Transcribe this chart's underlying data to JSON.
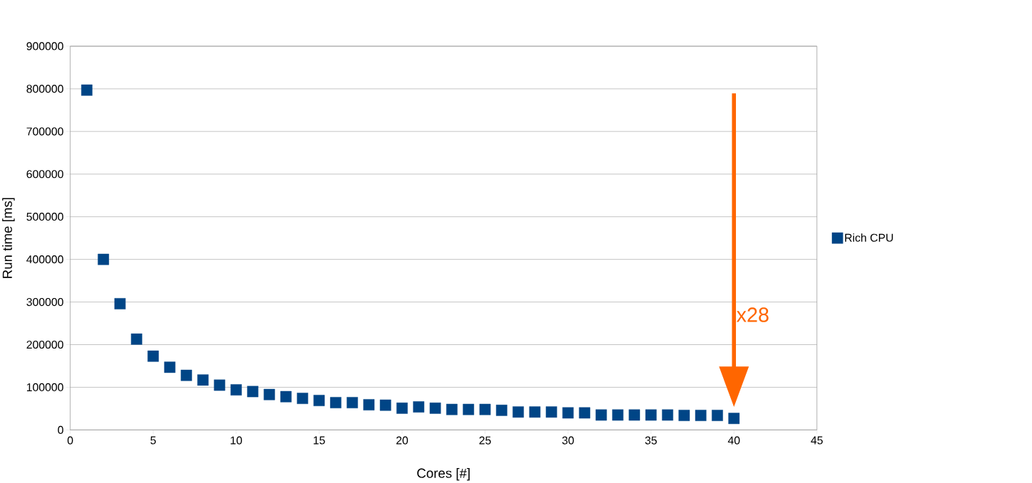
{
  "chart_data": {
    "type": "scatter",
    "xlabel": "Cores [#]",
    "ylabel": "Run time [ms]",
    "x": [
      1,
      2,
      3,
      4,
      5,
      6,
      7,
      8,
      9,
      10,
      11,
      12,
      13,
      14,
      15,
      16,
      17,
      18,
      19,
      20,
      21,
      22,
      23,
      24,
      25,
      26,
      27,
      28,
      29,
      30,
      31,
      32,
      33,
      34,
      35,
      36,
      37,
      38,
      39,
      40
    ],
    "series": [
      {
        "name": "Rich CPU",
        "color": "#004586",
        "values": [
          797000,
          400000,
          296000,
          213000,
          173000,
          147000,
          128000,
          117000,
          105000,
          94000,
          90000,
          83000,
          78000,
          74000,
          69000,
          64000,
          64000,
          59000,
          58000,
          51000,
          54000,
          51000,
          48000,
          48000,
          48000,
          46000,
          42000,
          42000,
          42000,
          40000,
          40000,
          35000,
          35000,
          35000,
          35000,
          35000,
          34000,
          34000,
          34000,
          27000
        ]
      }
    ],
    "xlim": [
      0,
      45
    ],
    "xticks": [
      0,
      5,
      10,
      15,
      20,
      25,
      30,
      35,
      40,
      45
    ],
    "ylim": [
      0,
      900000
    ],
    "yticks": [
      0,
      100000,
      200000,
      300000,
      400000,
      500000,
      600000,
      700000,
      800000,
      900000
    ],
    "grid": "y",
    "legend": "right",
    "marker": "square",
    "annotations": [
      "x28"
    ]
  }
}
